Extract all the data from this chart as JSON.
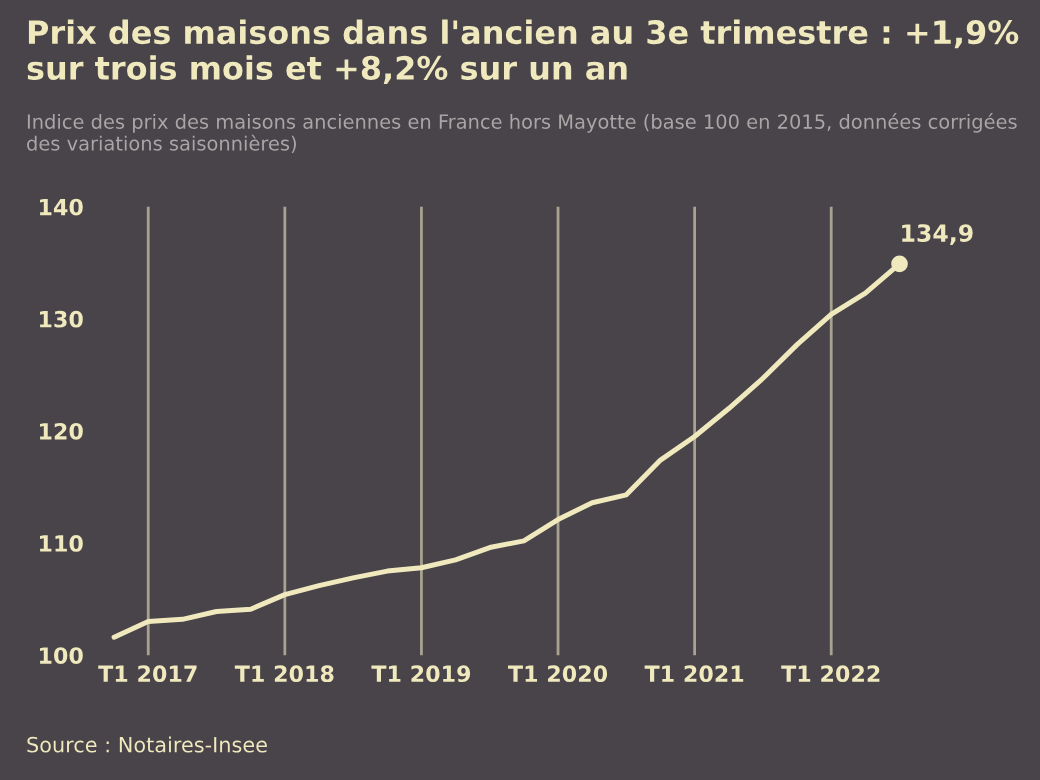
{
  "chart_data": {
    "type": "line",
    "title": "Prix des maisons dans l'ancien au 3e trimestre : +1,9% sur trois mois et +8,2% sur un an",
    "subtitle": "Indice des prix des maisons anciennes en France hors Mayotte (base 100 en 2015, données corrigées des variations saisonnières)",
    "categories": [
      null,
      "T1 2017",
      null,
      null,
      null,
      "T1 2018",
      null,
      null,
      null,
      "T1 2019",
      null,
      null,
      null,
      "T1 2020",
      null,
      null,
      null,
      "T1 2021",
      null,
      null,
      null,
      "T1 2022",
      null,
      null
    ],
    "series": [
      {
        "color": "#efe9bd",
        "values": [
          101.6,
          103.0,
          103.2,
          103.9,
          104.1,
          105.4,
          106.2,
          106.9,
          107.5,
          107.8,
          108.5,
          109.6,
          110.2,
          112.1,
          113.6,
          114.3,
          117.4,
          119.5,
          122.0,
          124.7,
          127.7,
          130.4,
          132.3,
          134.9
        ],
        "value_labels": [
          null,
          null,
          null,
          null,
          null,
          null,
          null,
          null,
          null,
          null,
          null,
          null,
          null,
          null,
          null,
          null,
          null,
          null,
          null,
          null,
          null,
          null,
          null,
          "134,9"
        ]
      }
    ],
    "ylim": [
      100,
      140
    ],
    "yticks": [
      100,
      110,
      120,
      130,
      140
    ],
    "grid": "x",
    "marker": "none",
    "line_style": "solid",
    "legend": false,
    "annotations": [
      "Source : Notaires-Insee"
    ]
  }
}
